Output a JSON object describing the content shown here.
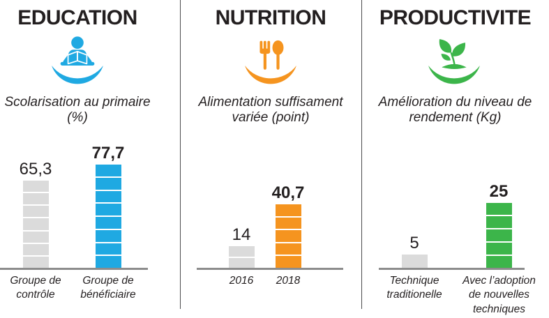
{
  "columns": [
    {
      "title": "EDUCATION",
      "icon": "reading-student-icon",
      "accent_color": "#1FA9E2",
      "subtitle_lines": [
        "Scolarisation au primaire",
        "(%)"
      ]
    },
    {
      "title": "NUTRITION",
      "icon": "fork-spoon-icon",
      "accent_color": "#F5941F",
      "subtitle_lines": [
        "Alimentation suffisament",
        "variée (point)"
      ]
    },
    {
      "title": "PRODUCTIVITE",
      "icon": "plant-sprout-icon",
      "accent_color": "#3CB54A",
      "subtitle_lines": [
        "Amélioration du niveau de",
        "rendement (Kg)"
      ]
    }
  ],
  "chart_data": [
    {
      "type": "bar",
      "title": "Scolarisation au primaire (%)",
      "categories": [
        "Groupe de contrôle",
        "Groupe de bénéficiaire"
      ],
      "values": [
        65.3,
        77.7
      ],
      "value_labels": [
        "65,3",
        "77,7"
      ],
      "bar_colors": [
        "#DBDBDB",
        "#1FA9E2"
      ],
      "ylim": [
        0,
        85
      ],
      "grid": false,
      "legend": "none",
      "segmented_bars": true
    },
    {
      "type": "bar",
      "title": "Alimentation suffisament variée (point)",
      "categories": [
        "2016",
        "2018"
      ],
      "values": [
        14,
        40.7
      ],
      "value_labels": [
        "14",
        "40,7"
      ],
      "bar_colors": [
        "#DBDBDB",
        "#F5941F"
      ],
      "ylim": [
        0,
        45
      ],
      "grid": false,
      "legend": "none",
      "segmented_bars": true
    },
    {
      "type": "bar",
      "title": "Amélioration du niveau de rendement (Kg)",
      "categories": [
        "Technique traditionelle",
        "Avec l’adoption de nouvelles techniques"
      ],
      "values": [
        5,
        25
      ],
      "value_labels": [
        "5",
        "25"
      ],
      "bar_colors": [
        "#DBDBDB",
        "#3CB54A"
      ],
      "ylim": [
        0,
        28
      ],
      "grid": false,
      "legend": "none",
      "segmented_bars": true
    }
  ],
  "styles": {
    "text_color": "#231F20",
    "axis_color": "#8C8C8C",
    "divider_color": "#4A4A4C",
    "gray_bar_color": "#DBDBDB",
    "segment_gap_color": "#FFFFFF"
  }
}
